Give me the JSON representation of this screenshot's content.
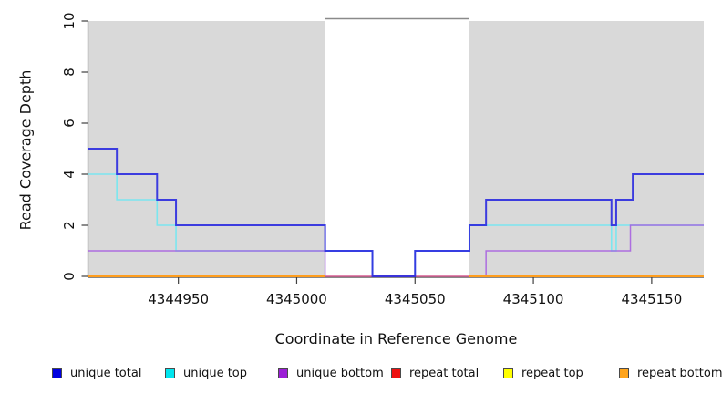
{
  "chart_data": {
    "type": "line",
    "subtype": "step-coverage-plot",
    "title": "",
    "xlabel": "Coordinate in Reference Genome",
    "ylabel": "Read Coverage Depth",
    "xlim": [
      4344912,
      4345172
    ],
    "ylim": [
      0,
      10
    ],
    "x_ticks": [
      4344950,
      4345000,
      4345050,
      4345100,
      4345150
    ],
    "y_ticks": [
      0,
      2,
      4,
      6,
      8,
      10
    ],
    "grid": false,
    "background_color": "#ffffff",
    "region_color": "#d9d9d9",
    "coverage_regions": [
      [
        4344912,
        4345012
      ],
      [
        4345073,
        4345172
      ]
    ],
    "masked_gap": [
      4345012,
      4345073
    ],
    "masked_gap_top_border_color": "#8a8a8a",
    "axis_color": "#404040",
    "legend_position": "bottom",
    "series": [
      {
        "name": "unique total",
        "legend_color": "#0000e0",
        "line_color": "#2a2adf",
        "line_width": 2,
        "opacity": 0.9,
        "points": [
          [
            4344912,
            5
          ],
          [
            4344924,
            4
          ],
          [
            4344941,
            3
          ],
          [
            4344949,
            2
          ],
          [
            4345012,
            1
          ],
          [
            4345032,
            0
          ],
          [
            4345050,
            1
          ],
          [
            4345073,
            2
          ],
          [
            4345080,
            3
          ],
          [
            4345133,
            2
          ],
          [
            4345135,
            3
          ],
          [
            4345142,
            4
          ]
        ],
        "end_x": 4345172
      },
      {
        "name": "unique top",
        "legend_color": "#00e5ee",
        "line_color": "#7be6ef",
        "line_width": 1.6,
        "opacity": 1,
        "points": [
          [
            4344912,
            4
          ],
          [
            4344924,
            3
          ],
          [
            4344941,
            2
          ],
          [
            4344949,
            1
          ],
          [
            4345032,
            0
          ],
          [
            4345050,
            1
          ],
          [
            4345073,
            2
          ],
          [
            4345133,
            1
          ],
          [
            4345135,
            2
          ]
        ],
        "end_x": 4345172
      },
      {
        "name": "unique bottom",
        "legend_color": "#9b1fd6",
        "line_color": "#a55ae0",
        "line_width": 1.5,
        "opacity": 0.85,
        "points": [
          [
            4344912,
            1
          ],
          [
            4345012,
            0
          ],
          [
            4345080,
            1
          ],
          [
            4345141,
            2
          ]
        ],
        "end_x": 4345172
      },
      {
        "name": "repeat total",
        "legend_color": "#ee1111",
        "line_color": "#e66a86",
        "line_width": 1.3,
        "opacity": 1,
        "points": [
          [
            4344912,
            0
          ]
        ],
        "end_x": 4345172
      },
      {
        "name": "repeat top",
        "legend_color": "#ffff00",
        "line_color": "#f5e600",
        "line_width": 1,
        "opacity": 1,
        "points": [
          [
            4344912,
            0
          ]
        ],
        "end_x": 4345172
      },
      {
        "name": "repeat bottom",
        "legend_color": "#ffa41b",
        "line_color": "#ff9d1d",
        "line_width": 2,
        "opacity": 1,
        "segments": [
          [
            4344912,
            4345012,
            0
          ],
          [
            4345073,
            4345172,
            0
          ]
        ]
      }
    ],
    "draw_order": [
      "repeat top",
      "unique top",
      "unique bottom",
      "repeat total",
      "repeat bottom",
      "unique total"
    ]
  }
}
